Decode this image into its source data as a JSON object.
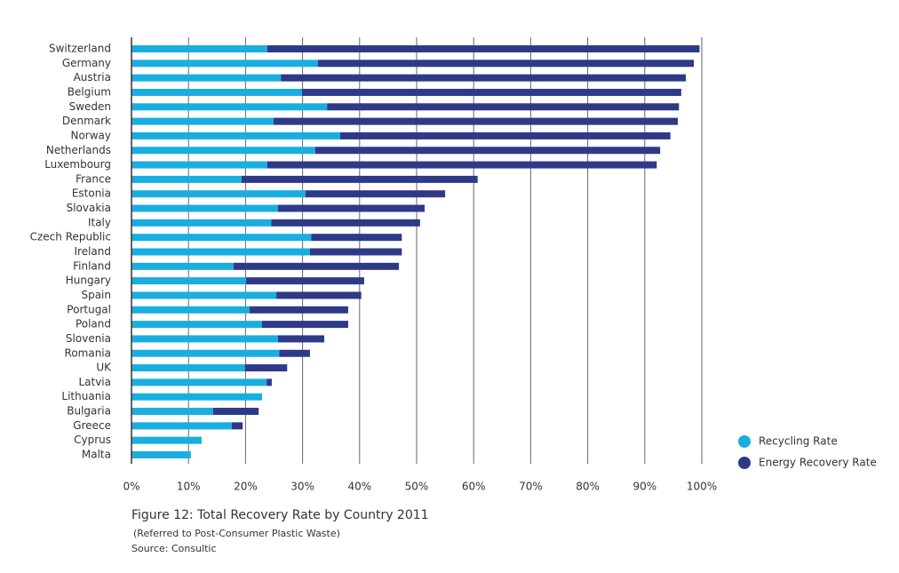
{
  "chart_data": {
    "type": "bar",
    "title": "Figure 12: Total Recovery Rate by Country 2011",
    "subtitle": "(Referred to Post-Consumer Plastic Waste)",
    "source": "Source: Consultic",
    "categories": [
      "Switzerland",
      "Germany",
      "Austria",
      "Belgium",
      "Sweden",
      "Denmark",
      "Norway",
      "Netherlands",
      "Luxembourg",
      "France",
      "Estonia",
      "Slovakia",
      "Italy",
      "Czech Republic",
      "Ireland",
      "Finland",
      "Hungary",
      "Spain",
      "Portugal",
      "Poland",
      "Slovenia",
      "Romania",
      "UK",
      "Latvia",
      "Lithuania",
      "Bulgaria",
      "Greece",
      "Cyprus",
      "Malta"
    ],
    "series": [
      {
        "name": "Recycling Rate",
        "color": "#1aaee0",
        "values": [
          23.8,
          32.7,
          26.2,
          29.9,
          34.3,
          24.9,
          36.6,
          32.2,
          23.8,
          19.3,
          30.5,
          25.7,
          24.5,
          31.5,
          31.3,
          17.9,
          20.1,
          25.4,
          20.7,
          22.9,
          25.7,
          25.9,
          19.9,
          23.7,
          22.9,
          14.3,
          17.6,
          12.3,
          10.4
        ]
      },
      {
        "name": "Energy Recovery Rate",
        "color": "#2e3a87",
        "values": [
          75.8,
          65.9,
          71.0,
          66.5,
          61.7,
          70.9,
          57.9,
          60.5,
          68.3,
          41.4,
          24.5,
          25.7,
          26.1,
          15.9,
          16.1,
          29.0,
          20.7,
          14.9,
          17.3,
          15.1,
          8.1,
          5.4,
          7.4,
          0.9,
          0,
          8.0,
          1.9,
          0,
          0
        ]
      }
    ],
    "xlim": [
      0,
      100
    ],
    "xticks": [
      {
        "value": 0,
        "label": "0%"
      },
      {
        "value": 10,
        "label": "10%"
      },
      {
        "value": 20,
        "label": "20%"
      },
      {
        "value": 30,
        "label": "30%"
      },
      {
        "value": 40,
        "label": "40%"
      },
      {
        "value": 50,
        "label": "50%"
      },
      {
        "value": 60,
        "label": "60%"
      },
      {
        "value": 70,
        "label": "70%"
      },
      {
        "value": 80,
        "label": "80%"
      },
      {
        "value": 90,
        "label": "90%"
      },
      {
        "value": 100,
        "label": "100%"
      }
    ],
    "grid": true
  }
}
